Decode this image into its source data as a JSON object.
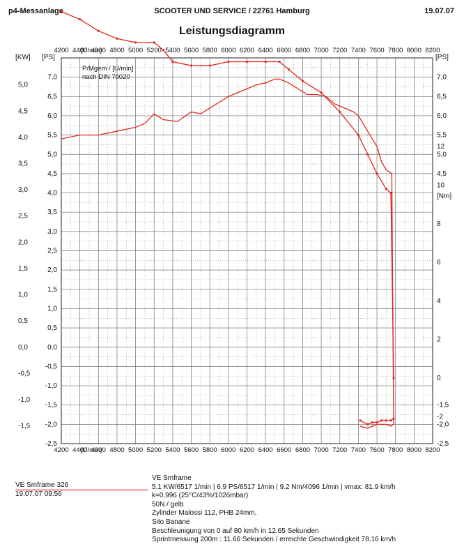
{
  "header": {
    "left": "p4-Messanlage",
    "center": "SCOOTER UND SERVICE / 22761 Hamburg",
    "date": "19.07.07"
  },
  "title": "Leistungsdiagramm",
  "chart_data": {
    "type": "line",
    "unit_labels": {
      "kw": "[KW]",
      "ps_left": "[PS]",
      "ps_right": "[PS]",
      "nm": "[Nm]",
      "rpm": "[U/min]"
    },
    "legend_lines": [
      "P/Mgem / [U/min]",
      "nach DIN 70020"
    ],
    "x_range": [
      4200,
      8200
    ],
    "x_ticks": [
      4200,
      4400,
      4600,
      4800,
      5000,
      5200,
      5400,
      5600,
      5800,
      6000,
      6200,
      6400,
      6600,
      6800,
      7000,
      7200,
      7400,
      7600,
      7800,
      8000,
      8200
    ],
    "kw_range": [
      -2.0,
      5.5
    ],
    "kw_ticks": [
      "-1,5",
      "-1,0",
      "-0,5",
      "0,0",
      "0,5",
      "1,0",
      "1,5",
      "2,0",
      "2,5",
      "3,0",
      "3,5",
      "4,0",
      "4,5",
      "5,0"
    ],
    "ps_left_ticks": [
      "-2,5",
      "-2,0",
      "-1,5",
      "-1,0",
      "-0,5",
      "0,0",
      "0,5",
      "1,0",
      "1,5",
      "2,0",
      "2,5",
      "3,0",
      "3,5",
      "4,0",
      "4,5",
      "5,0",
      "5,5",
      "6,0",
      "6,5",
      "7,0"
    ],
    "ps_right_ticks": [
      "-2,5",
      "-2,0",
      "-1,5",
      "4,5",
      "5,0",
      "5,5",
      "6,0",
      "6,5",
      "7,0"
    ],
    "nm_ticks": [
      "-2",
      "0",
      "2",
      "4",
      "6",
      "8",
      "10",
      "12"
    ],
    "series": [
      {
        "name": "power_ps",
        "color": "#e0261e",
        "x": [
          4200,
          4400,
          4600,
          4800,
          5000,
          5100,
          5200,
          5300,
          5450,
          5600,
          5700,
          5800,
          6000,
          6100,
          6200,
          6300,
          6400,
          6500,
          6550,
          6650,
          6750,
          6850,
          6950,
          7050,
          7150,
          7250,
          7350,
          7400,
          7500,
          7600,
          7650,
          7700,
          7760,
          7780
        ],
        "y": [
          5.4,
          5.5,
          5.5,
          5.6,
          5.7,
          5.8,
          6.05,
          5.9,
          5.85,
          6.1,
          6.05,
          6.2,
          6.5,
          6.6,
          6.7,
          6.8,
          6.85,
          6.95,
          6.95,
          6.85,
          6.7,
          6.55,
          6.55,
          6.5,
          6.3,
          6.2,
          6.1,
          6.0,
          5.6,
          5.2,
          4.8,
          4.6,
          4.5,
          -2.0
        ]
      },
      {
        "name": "torque_nm",
        "color": "#e0261e",
        "x": [
          4200,
          4400,
          4600,
          4800,
          5000,
          5200,
          5300,
          5400,
          5600,
          5800,
          6000,
          6200,
          6400,
          6550,
          6650,
          6800,
          7000,
          7200,
          7400,
          7500,
          7600,
          7700,
          7750,
          7780
        ],
        "y": [
          8.7,
          8.5,
          8.2,
          8.0,
          7.9,
          7.9,
          7.7,
          7.4,
          7.3,
          7.3,
          7.4,
          7.4,
          7.4,
          7.4,
          7.2,
          6.9,
          6.6,
          6.1,
          5.5,
          5.0,
          4.5,
          4.1,
          4.0,
          -0.8
        ]
      },
      {
        "name": "decel_ps",
        "color": "#e0261e",
        "x": [
          7420,
          7500,
          7550,
          7600,
          7650,
          7700,
          7750,
          7780
        ],
        "y": [
          -2.05,
          -2.1,
          -2.05,
          -2.0,
          -2.0,
          -2.0,
          -2.05,
          -2.0
        ]
      },
      {
        "name": "decel_nm",
        "color": "#e0261e",
        "x": [
          7420,
          7500,
          7550,
          7600,
          7650,
          7700,
          7750,
          7780
        ],
        "y": [
          -1.9,
          -2.0,
          -1.95,
          -1.95,
          -1.9,
          -1.9,
          -1.9,
          -1.85
        ]
      }
    ]
  },
  "signature": {
    "line1": "VE Smframe 326",
    "line2": "19.07.07  09:56"
  },
  "info": [
    "VE Smframe",
    "5.1 KW/6517 1/min  |  6.9 PS/6517 1/min  |  9.2 Nm/4096 1/min | vmax: 81.9 km/h",
    "k=0,996 (25°C/43%/1026mbar)",
    "50N /  gelb",
    "Zylinder Malossi 112, PHB 24mm,",
    "Sito Banane",
    "Beschleunigung von 0 auf 80 km/h in 12.65 Sekunden",
    "Sprintmessung 200m : 11.66 Sekunden / erreichte Geschwindigkeit 78.16 km/h"
  ]
}
